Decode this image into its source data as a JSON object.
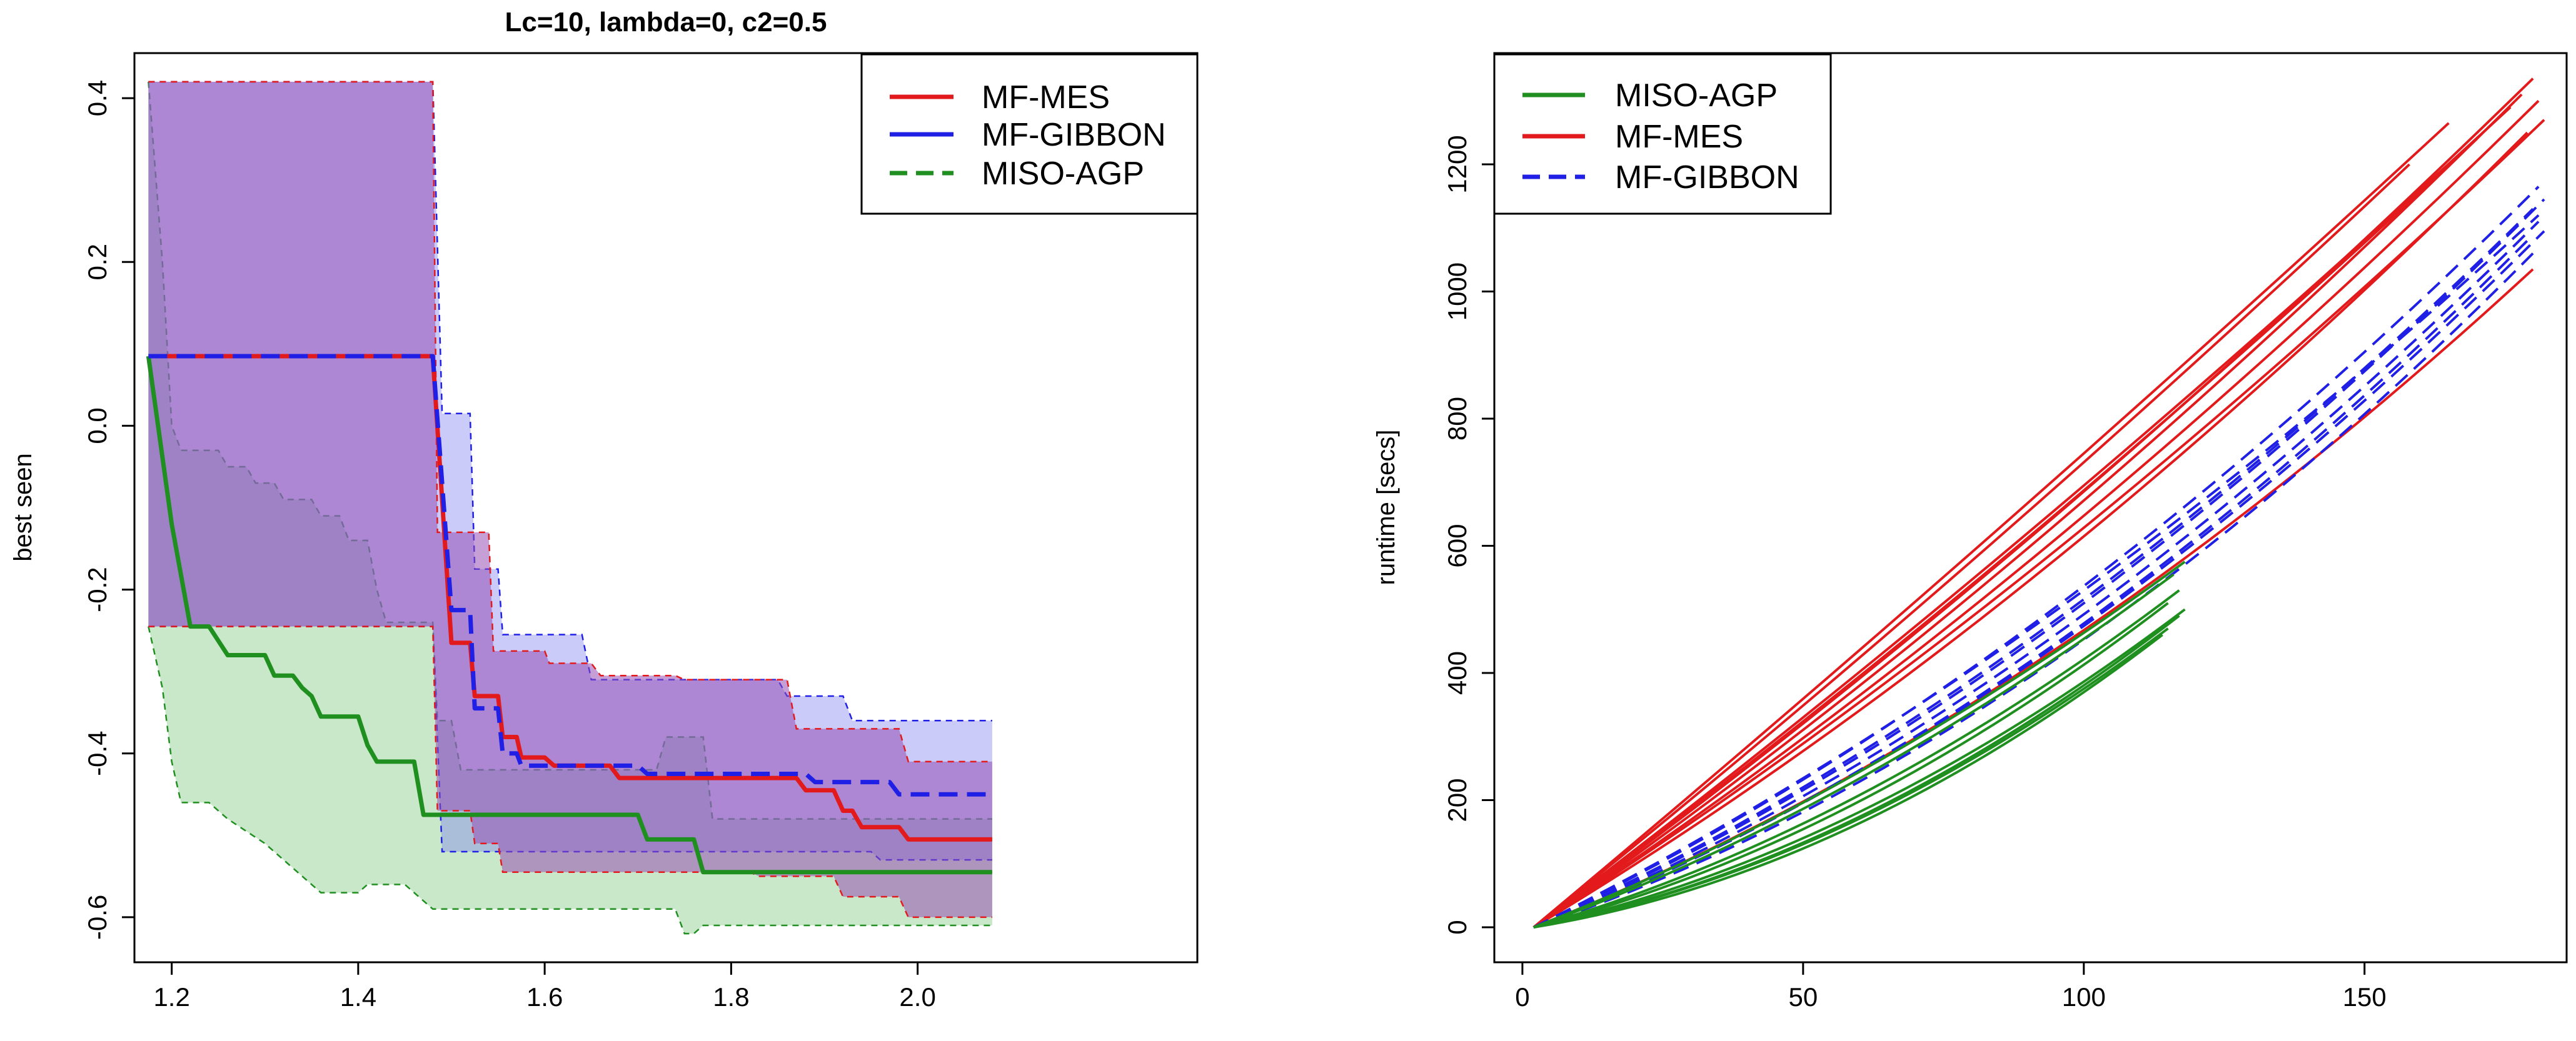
{
  "colors": {
    "red": "#e31a1c",
    "blue": "#1f1fe6",
    "green": "#1f8f1f",
    "axis": "#000000",
    "background": "#ffffff"
  },
  "chart_data": [
    {
      "type": "line",
      "title": "Lc=10, lambda=0, c2=0.5",
      "xlabel": "",
      "ylabel": "best seen",
      "xlim": [
        1.16,
        2.3
      ],
      "ylim": [
        -0.655,
        0.455
      ],
      "xticks": [
        1.2,
        1.4,
        1.6,
        1.8,
        2.0
      ],
      "xtick_labels": [
        "1.2",
        "1.4",
        "1.6",
        "1.8",
        "2.0"
      ],
      "yticks": [
        -0.6,
        -0.4,
        -0.2,
        0.0,
        0.2,
        0.4
      ],
      "ytick_labels": [
        "-0.6",
        "-0.4",
        "-0.2",
        "0.0",
        "0.2",
        "0.4"
      ],
      "legend": {
        "position": "top-right",
        "entries": [
          {
            "label": "MF-MES",
            "color": "#e31a1c",
            "dash": "solid"
          },
          {
            "label": "MF-GIBBON",
            "color": "#1f1fe6",
            "dash": "solid"
          },
          {
            "label": "MISO-AGP",
            "color": "#1f8f1f",
            "dash": "dashed"
          }
        ]
      },
      "bands": [
        {
          "name": "MF-MES band",
          "color": "#e31a1c",
          "fill": "rgba(150,80,180,0.55)",
          "upper": [
            [
              1.175,
              0.42
            ],
            [
              1.48,
              0.42
            ],
            [
              1.485,
              -0.13
            ],
            [
              1.54,
              -0.13
            ],
            [
              1.545,
              -0.275
            ],
            [
              1.6,
              -0.275
            ],
            [
              1.605,
              -0.29
            ],
            [
              1.65,
              -0.29
            ],
            [
              1.66,
              -0.305
            ],
            [
              1.74,
              -0.305
            ],
            [
              1.75,
              -0.31
            ],
            [
              1.86,
              -0.31
            ],
            [
              1.87,
              -0.37
            ],
            [
              1.98,
              -0.37
            ],
            [
              1.99,
              -0.41
            ],
            [
              2.08,
              -0.41
            ]
          ],
          "lower": [
            [
              1.175,
              -0.245
            ],
            [
              1.48,
              -0.245
            ],
            [
              1.485,
              -0.47
            ],
            [
              1.52,
              -0.47
            ],
            [
              1.525,
              -0.51
            ],
            [
              1.55,
              -0.51
            ],
            [
              1.555,
              -0.545
            ],
            [
              1.82,
              -0.545
            ],
            [
              1.83,
              -0.55
            ],
            [
              1.91,
              -0.55
            ],
            [
              1.92,
              -0.575
            ],
            [
              1.98,
              -0.575
            ],
            [
              1.99,
              -0.6
            ],
            [
              2.08,
              -0.6
            ]
          ]
        },
        {
          "name": "MF-GIBBON band",
          "color": "#1f1fe6",
          "fill": "rgba(130,130,240,0.42)",
          "upper": [
            [
              1.175,
              0.42
            ],
            [
              1.48,
              0.42
            ],
            [
              1.49,
              0.015
            ],
            [
              1.52,
              0.015
            ],
            [
              1.525,
              -0.175
            ],
            [
              1.55,
              -0.175
            ],
            [
              1.555,
              -0.255
            ],
            [
              1.64,
              -0.255
            ],
            [
              1.65,
              -0.31
            ],
            [
              1.85,
              -0.31
            ],
            [
              1.86,
              -0.33
            ],
            [
              1.92,
              -0.33
            ],
            [
              1.93,
              -0.36
            ],
            [
              2.08,
              -0.36
            ]
          ],
          "lower": [
            [
              1.175,
              -0.245
            ],
            [
              1.48,
              -0.245
            ],
            [
              1.49,
              -0.52
            ],
            [
              1.95,
              -0.52
            ],
            [
              1.96,
              -0.53
            ],
            [
              2.08,
              -0.53
            ]
          ]
        },
        {
          "name": "MISO-AGP band",
          "color": "#1f8f1f",
          "fill": "rgba(100,190,100,0.35)",
          "upper": [
            [
              1.175,
              0.42
            ],
            [
              1.19,
              0.2
            ],
            [
              1.2,
              0.0
            ],
            [
              1.21,
              -0.03
            ],
            [
              1.25,
              -0.03
            ],
            [
              1.26,
              -0.05
            ],
            [
              1.28,
              -0.05
            ],
            [
              1.29,
              -0.07
            ],
            [
              1.31,
              -0.07
            ],
            [
              1.32,
              -0.09
            ],
            [
              1.35,
              -0.09
            ],
            [
              1.36,
              -0.11
            ],
            [
              1.38,
              -0.11
            ],
            [
              1.39,
              -0.14
            ],
            [
              1.41,
              -0.14
            ],
            [
              1.42,
              -0.2
            ],
            [
              1.43,
              -0.24
            ],
            [
              1.48,
              -0.24
            ],
            [
              1.485,
              -0.36
            ],
            [
              1.5,
              -0.36
            ],
            [
              1.51,
              -0.42
            ],
            [
              1.72,
              -0.42
            ],
            [
              1.73,
              -0.38
            ],
            [
              1.77,
              -0.38
            ],
            [
              1.78,
              -0.48
            ],
            [
              2.08,
              -0.48
            ]
          ],
          "lower": [
            [
              1.175,
              -0.245
            ],
            [
              1.19,
              -0.32
            ],
            [
              1.2,
              -0.41
            ],
            [
              1.21,
              -0.46
            ],
            [
              1.24,
              -0.46
            ],
            [
              1.26,
              -0.48
            ],
            [
              1.3,
              -0.51
            ],
            [
              1.33,
              -0.54
            ],
            [
              1.36,
              -0.57
            ],
            [
              1.4,
              -0.57
            ],
            [
              1.41,
              -0.56
            ],
            [
              1.45,
              -0.56
            ],
            [
              1.47,
              -0.58
            ],
            [
              1.48,
              -0.59
            ],
            [
              1.74,
              -0.59
            ],
            [
              1.75,
              -0.62
            ],
            [
              1.76,
              -0.62
            ],
            [
              1.77,
              -0.61
            ],
            [
              2.08,
              -0.61
            ]
          ]
        }
      ],
      "series": [
        {
          "name": "MF-MES",
          "color": "#e31a1c",
          "dash": "solid",
          "points": [
            [
              1.175,
              0.085
            ],
            [
              1.48,
              0.085
            ],
            [
              1.5,
              -0.265
            ],
            [
              1.52,
              -0.265
            ],
            [
              1.525,
              -0.33
            ],
            [
              1.55,
              -0.33
            ],
            [
              1.555,
              -0.38
            ],
            [
              1.57,
              -0.38
            ],
            [
              1.575,
              -0.405
            ],
            [
              1.6,
              -0.405
            ],
            [
              1.61,
              -0.415
            ],
            [
              1.67,
              -0.415
            ],
            [
              1.68,
              -0.43
            ],
            [
              1.87,
              -0.43
            ],
            [
              1.88,
              -0.445
            ],
            [
              1.91,
              -0.445
            ],
            [
              1.92,
              -0.47
            ],
            [
              1.93,
              -0.47
            ],
            [
              1.94,
              -0.49
            ],
            [
              1.98,
              -0.49
            ],
            [
              1.99,
              -0.505
            ],
            [
              2.08,
              -0.505
            ]
          ]
        },
        {
          "name": "MF-GIBBON",
          "color": "#1f1fe6",
          "dash": "dashed",
          "points": [
            [
              1.175,
              0.085
            ],
            [
              1.48,
              0.085
            ],
            [
              1.5,
              -0.225
            ],
            [
              1.52,
              -0.225
            ],
            [
              1.525,
              -0.345
            ],
            [
              1.55,
              -0.345
            ],
            [
              1.555,
              -0.4
            ],
            [
              1.57,
              -0.4
            ],
            [
              1.575,
              -0.415
            ],
            [
              1.7,
              -0.415
            ],
            [
              1.71,
              -0.425
            ],
            [
              1.88,
              -0.425
            ],
            [
              1.89,
              -0.435
            ],
            [
              1.97,
              -0.435
            ],
            [
              1.98,
              -0.45
            ],
            [
              2.08,
              -0.45
            ]
          ]
        },
        {
          "name": "MISO-AGP",
          "color": "#1f8f1f",
          "dash": "solid",
          "points": [
            [
              1.175,
              0.085
            ],
            [
              1.2,
              -0.12
            ],
            [
              1.22,
              -0.245
            ],
            [
              1.24,
              -0.245
            ],
            [
              1.26,
              -0.28
            ],
            [
              1.3,
              -0.28
            ],
            [
              1.31,
              -0.305
            ],
            [
              1.33,
              -0.305
            ],
            [
              1.34,
              -0.32
            ],
            [
              1.35,
              -0.33
            ],
            [
              1.36,
              -0.355
            ],
            [
              1.4,
              -0.355
            ],
            [
              1.41,
              -0.39
            ],
            [
              1.42,
              -0.41
            ],
            [
              1.46,
              -0.41
            ],
            [
              1.47,
              -0.475
            ],
            [
              1.7,
              -0.475
            ],
            [
              1.71,
              -0.505
            ],
            [
              1.76,
              -0.505
            ],
            [
              1.77,
              -0.545
            ],
            [
              2.08,
              -0.545
            ]
          ]
        }
      ]
    },
    {
      "type": "line",
      "title": "",
      "xlabel": "",
      "ylabel": "runtime [secs]",
      "xlim": [
        -5,
        186
      ],
      "ylim": [
        -55,
        1375
      ],
      "xticks": [
        0,
        50,
        100,
        150
      ],
      "xtick_labels": [
        "0",
        "50",
        "100",
        "150"
      ],
      "yticks": [
        0,
        200,
        400,
        600,
        800,
        1000,
        1200
      ],
      "ytick_labels": [
        "0",
        "200",
        "400",
        "600",
        "800",
        "1000",
        "1200"
      ],
      "legend": {
        "position": "top-left",
        "entries": [
          {
            "label": "MISO-AGP",
            "color": "#1f8f1f",
            "dash": "solid"
          },
          {
            "label": "MF-MES",
            "color": "#e31a1c",
            "dash": "solid"
          },
          {
            "label": "MF-GIBBON",
            "color": "#1f1fe6",
            "dash": "dashed"
          }
        ]
      },
      "series": [
        {
          "name": "MF-MES",
          "color": "#e31a1c",
          "dash": "solid",
          "runs": [
            {
              "x_end": 180,
              "y_end": 1335,
              "curve": 0.15
            },
            {
              "x_end": 178,
              "y_end": 1310,
              "curve": 0.18
            },
            {
              "x_end": 181,
              "y_end": 1300,
              "curve": 0.2
            },
            {
              "x_end": 182,
              "y_end": 1270,
              "curve": 0.2
            },
            {
              "x_end": 176,
              "y_end": 1290,
              "curve": 0.1
            },
            {
              "x_end": 179,
              "y_end": 1250,
              "curve": 0.25
            },
            {
              "x_end": 170,
              "y_end": 1240,
              "curve": 0.12
            },
            {
              "x_end": 165,
              "y_end": 1265,
              "curve": 0.05
            },
            {
              "x_end": 158,
              "y_end": 1200,
              "curve": 0.08
            },
            {
              "x_end": 180,
              "y_end": 1035,
              "curve": 0.4
            }
          ]
        },
        {
          "name": "MF-GIBBON",
          "color": "#1f1fe6",
          "dash": "dashed",
          "runs": [
            {
              "x_end": 181,
              "y_end": 1165,
              "curve": 0.35
            },
            {
              "x_end": 182,
              "y_end": 1145,
              "curve": 0.4
            },
            {
              "x_end": 180,
              "y_end": 1130,
              "curve": 0.38
            },
            {
              "x_end": 181,
              "y_end": 1110,
              "curve": 0.42
            },
            {
              "x_end": 182,
              "y_end": 1095,
              "curve": 0.45
            },
            {
              "x_end": 179,
              "y_end": 1080,
              "curve": 0.45
            },
            {
              "x_end": 180,
              "y_end": 1060,
              "curve": 0.5
            },
            {
              "x_end": 181,
              "y_end": 1120,
              "curve": 0.3
            }
          ]
        },
        {
          "name": "MISO-AGP",
          "color": "#1f8f1f",
          "dash": "solid",
          "runs": [
            {
              "x_end": 118,
              "y_end": 575,
              "curve": 0.3
            },
            {
              "x_end": 116,
              "y_end": 555,
              "curve": 0.35
            },
            {
              "x_end": 117,
              "y_end": 530,
              "curve": 0.45
            },
            {
              "x_end": 115,
              "y_end": 510,
              "curve": 0.5
            },
            {
              "x_end": 118,
              "y_end": 500,
              "curve": 0.55
            },
            {
              "x_end": 117,
              "y_end": 490,
              "curve": 0.6
            },
            {
              "x_end": 115,
              "y_end": 470,
              "curve": 0.6
            },
            {
              "x_end": 114,
              "y_end": 460,
              "curve": 0.65
            }
          ]
        }
      ]
    }
  ]
}
